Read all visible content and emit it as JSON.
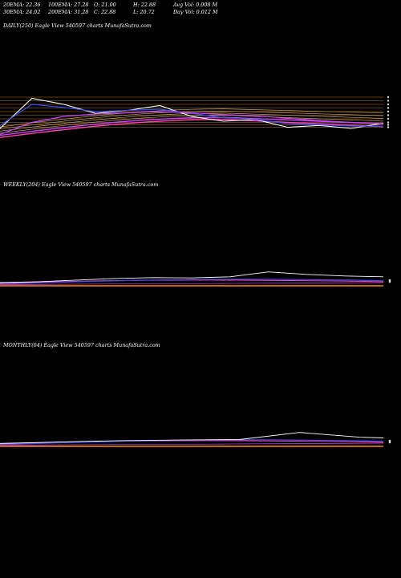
{
  "stats": {
    "row1": [
      "20EMA: 22.36",
      "100EMA: 27.28",
      "O: 21.00",
      "H: 22.88",
      "Avg Vol: 0.008  M"
    ],
    "row2": [
      "30EMA: 24.02",
      "200EMA: 31.28",
      "C: 22.88",
      "L: 20.72",
      "Day Vol: 0.012  M"
    ]
  },
  "panels": {
    "daily": {
      "label": "DAILY(250) Eagle  View  540597 charts MunafaSutra.com"
    },
    "weekly": {
      "label": "WEEKLY(204) Eagle  View  540597 charts MunafaSutra.com"
    },
    "monthly": {
      "label": "MONTHLY(64) Eagle  View  540597 charts MunafaSutra.com"
    }
  },
  "colors": {
    "background": "#000000",
    "price": "#ffffff",
    "ema_blue": "#3a4ef0",
    "ema_pink": "#ff44aa",
    "ema_magenta": "#cc44ff",
    "support_orange": "#ff8c00",
    "grid_tan": "#c8a060"
  },
  "chart_data": [
    {
      "type": "line",
      "title": "DAILY(250) Eagle  View  540597 charts MunafaSutra.com",
      "x": [
        0,
        20,
        40,
        60,
        80,
        100,
        120,
        140,
        160,
        180,
        200,
        220,
        240
      ],
      "series": [
        {
          "values": [
            22.0,
            27.0,
            26.0,
            24.5,
            25.0,
            25.8,
            24.0,
            23.2,
            23.5,
            22.2,
            22.5,
            22.0,
            22.88
          ]
        },
        {
          "values": [
            22.5,
            26.0,
            25.5,
            24.8,
            25.0,
            25.2,
            24.5,
            23.8,
            23.5,
            22.8,
            22.6,
            22.4,
            22.36
          ]
        },
        {
          "values": [
            21.0,
            23.0,
            24.0,
            24.4,
            24.6,
            24.8,
            24.6,
            24.3,
            24.1,
            23.7,
            23.3,
            23.0,
            22.8
          ]
        }
      ]
    },
    {
      "type": "line",
      "title": "WEEKLY(204) Eagle  View  540597 charts MunafaSutra.com",
      "x": [
        0,
        20,
        40,
        60,
        80,
        100,
        120,
        140,
        160,
        180,
        200
      ],
      "series": [
        {
          "values": [
            1.0,
            1.5,
            2.5,
            3.5,
            4.0,
            3.8,
            4.5,
            7.5,
            6.0,
            5.0,
            4.5
          ]
        }
      ]
    },
    {
      "type": "line",
      "title": "MONTHLY(64) Eagle  View  540597 charts MunafaSutra.com",
      "x": [
        0,
        10,
        20,
        30,
        40,
        50,
        60,
        64
      ],
      "series": [
        {
          "values": [
            1.0,
            2.0,
            3.0,
            3.5,
            3.8,
            9.0,
            5.5,
            5.0
          ]
        }
      ]
    }
  ]
}
